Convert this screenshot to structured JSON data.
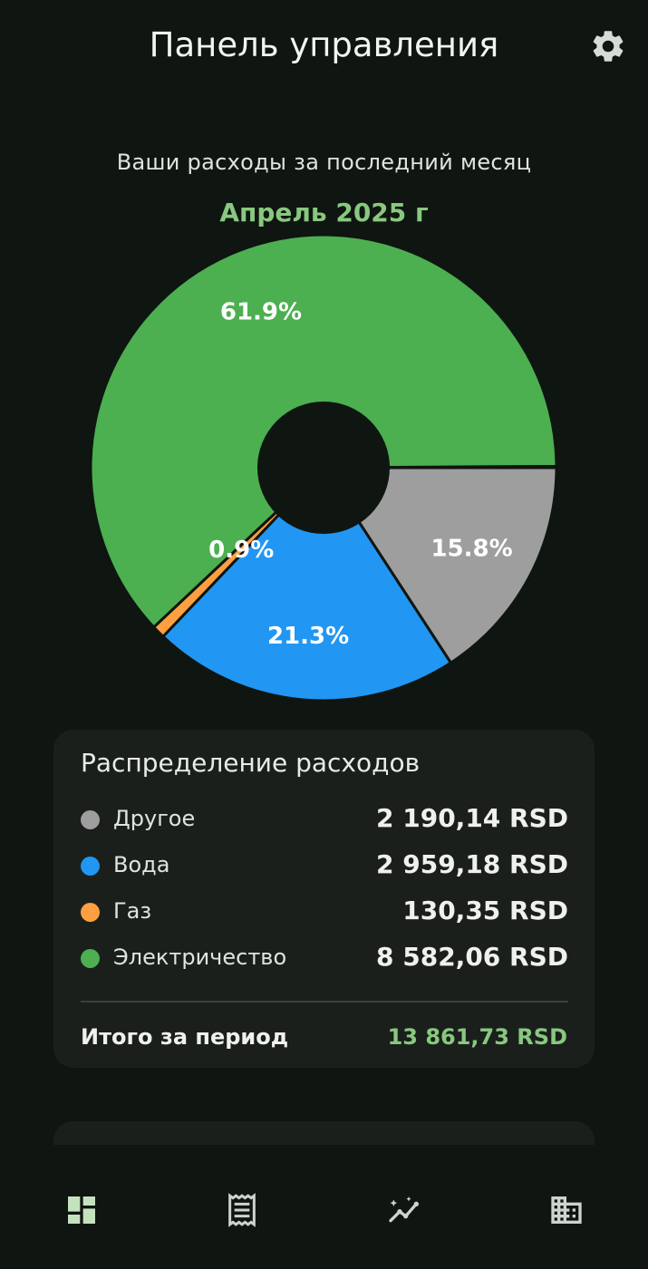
{
  "header": {
    "title": "Панель управления",
    "settings_icon": "gear-icon"
  },
  "summary": {
    "subtitle": "Ваши расходы за последний месяц",
    "month": "Апрель 2025 г"
  },
  "chart_data": {
    "type": "pie",
    "title": "",
    "slices": [
      {
        "label": "Другое",
        "percent": 15.8,
        "color": "#9e9e9e"
      },
      {
        "label": "Вода",
        "percent": 21.3,
        "color": "#2196f3"
      },
      {
        "label": "Газ",
        "percent": 0.9,
        "color": "#ffa040"
      },
      {
        "label": "Электричество",
        "percent": 61.9,
        "color": "#4caf50"
      }
    ],
    "percent_labels": [
      "15.8%",
      "21.3%",
      "0.9%",
      "61.9%"
    ]
  },
  "breakdown": {
    "title": "Распределение расходов",
    "items": [
      {
        "label": "Другое",
        "value": "2 190,14 RSD",
        "color": "#9e9e9e"
      },
      {
        "label": "Вода",
        "value": "2 959,18 RSD",
        "color": "#2196f3"
      },
      {
        "label": "Газ",
        "value": "130,35 RSD",
        "color": "#ffa040"
      },
      {
        "label": "Электричество",
        "value": "8 582,06 RSD",
        "color": "#4caf50"
      }
    ],
    "total_label": "Итого за период",
    "total_value": "13 861,73 RSD"
  },
  "nav": {
    "items": [
      {
        "icon": "dashboard-icon",
        "active": true
      },
      {
        "icon": "receipt-icon",
        "active": false
      },
      {
        "icon": "analytics-icon",
        "active": false
      },
      {
        "icon": "building-icon",
        "active": false
      }
    ],
    "active_color": "#c5e2bf",
    "inactive_color": "#cfd3cd"
  }
}
